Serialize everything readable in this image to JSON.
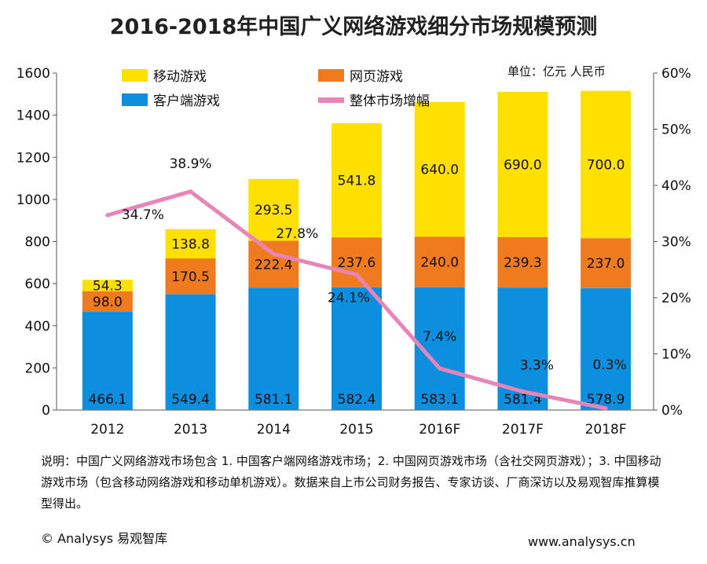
{
  "chart_data": {
    "type": "bar",
    "stacked": true,
    "title": "2016-2018年中国广义网络游戏细分市场规模预测",
    "unit_label": "单位：亿元 人民币",
    "categories": [
      "2012",
      "2013",
      "2014",
      "2015",
      "2016F",
      "2017F",
      "2018F"
    ],
    "series": [
      {
        "name": "客户端游戏",
        "type": "bar",
        "color": "#0d8fe0",
        "values": [
          466.1,
          549.4,
          581.1,
          582.4,
          583.1,
          581.4,
          578.9
        ]
      },
      {
        "name": "网页游戏",
        "type": "bar",
        "color": "#f07a1e",
        "values": [
          98.0,
          170.5,
          222.4,
          237.6,
          240.0,
          239.3,
          237.0
        ]
      },
      {
        "name": "移动游戏",
        "type": "bar",
        "color": "#ffe000",
        "values": [
          54.3,
          138.8,
          293.5,
          541.8,
          640.0,
          690.0,
          700.0
        ]
      },
      {
        "name": "整体市场增幅",
        "type": "line",
        "axis": "right",
        "color": "#e884b8",
        "values": [
          34.7,
          38.9,
          27.8,
          24.1,
          7.4,
          3.3,
          0.3
        ],
        "labels": [
          "34.7%",
          "38.9%",
          "27.8%",
          "24.1%",
          "7.4%",
          "3.3%",
          "0.3%"
        ]
      }
    ],
    "y_left": {
      "range": [
        0,
        1600
      ],
      "ticks": [
        "0",
        "200",
        "400",
        "600",
        "800",
        "1000",
        "1200",
        "1400",
        "1600"
      ]
    },
    "y_right": {
      "range": [
        0,
        60
      ],
      "ticks": [
        "0%",
        "10%",
        "20%",
        "30%",
        "40%",
        "50%",
        "60%"
      ]
    },
    "grid": false,
    "legend_placement": "top"
  },
  "note": "说明：中国广义网络游戏市场包含 1. 中国客户端网络游戏市场；2. 中国网页游戏市场（含社交网页游戏）；3. 中国移动游戏市场（包含移动网络游戏和移动单机游戏）。数据来自上市公司财务报告、专家访谈、厂商深访以及易观智库推算模型得出。",
  "copyright": "© Analysys 易观智库",
  "url": "www.analysys.cn",
  "watermark": "易观智库"
}
